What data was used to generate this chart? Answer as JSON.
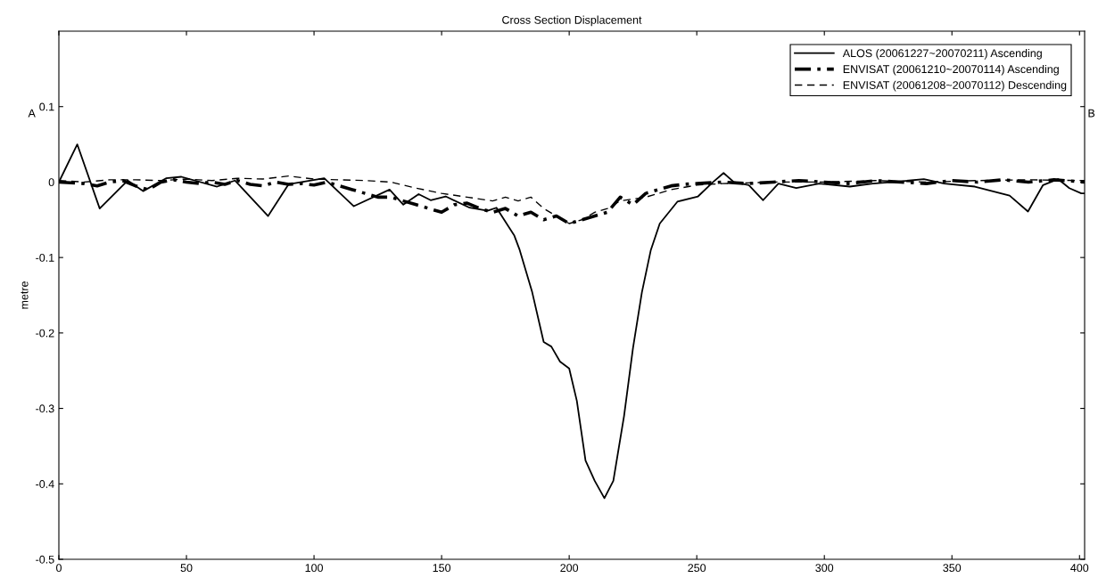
{
  "chart_data": {
    "type": "line",
    "title": "Cross Section Displacement",
    "ylabel": "metre",
    "xlim": [
      0,
      402
    ],
    "ylim": [
      -0.5,
      0.2
    ],
    "xticks": [
      0,
      50,
      100,
      150,
      200,
      250,
      300,
      350,
      400
    ],
    "yticks": [
      -0.5,
      -0.4,
      -0.3,
      -0.2,
      -0.1,
      0,
      0.1
    ],
    "grid": false,
    "legend": "top right",
    "annotations": [
      "A",
      "B"
    ],
    "series": [
      {
        "name": "ALOS (20061227~20070211) Ascending",
        "color": "#000000",
        "line_style": "solid",
        "x": [
          0,
          7.2,
          16,
          27,
          33,
          42,
          48,
          62,
          69,
          82,
          90,
          104,
          115.6,
          129.6,
          135,
          141,
          145.7,
          151.6,
          161,
          168,
          171.5,
          178.5,
          180.6,
          185.5,
          190,
          193,
          196.4,
          200,
          203,
          206.4,
          210,
          213.8,
          217.3,
          221.5,
          225,
          228.5,
          232,
          235.5,
          242.4,
          250.5,
          256.4,
          260.5,
          264.5,
          270.4,
          276,
          282,
          289,
          298,
          310,
          319,
          327,
          339,
          347,
          359,
          372.6,
          379.8,
          385.7,
          391.6,
          396,
          400.7,
          402
        ],
        "values": [
          0,
          0.05,
          -0.035,
          0.002,
          -0.012,
          0.005,
          0.007,
          -0.006,
          0.002,
          -0.045,
          -0.003,
          0.005,
          -0.032,
          -0.01,
          -0.03,
          -0.016,
          -0.024,
          -0.019,
          -0.034,
          -0.038,
          -0.034,
          -0.071,
          -0.09,
          -0.146,
          -0.212,
          -0.218,
          -0.238,
          -0.247,
          -0.29,
          -0.369,
          -0.396,
          -0.419,
          -0.396,
          -0.31,
          -0.22,
          -0.146,
          -0.09,
          -0.055,
          -0.026,
          -0.019,
          0,
          0.012,
          0,
          -0.004,
          -0.024,
          -0.002,
          -0.008,
          -0.002,
          -0.006,
          -0.002,
          0,
          0.004,
          -0.002,
          -0.006,
          -0.018,
          -0.039,
          -0.004,
          0.004,
          -0.008,
          -0.015,
          -0.015
        ]
      },
      {
        "name": "ENVISAT (20061210~20070114) Ascending",
        "color": "#000000",
        "line_style": "dashdot",
        "x": [
          0,
          10,
          15,
          20,
          25,
          30,
          35,
          40,
          45,
          50,
          55,
          60,
          65,
          70,
          75,
          80,
          85,
          90,
          95,
          100,
          105,
          110,
          115,
          120,
          125,
          130,
          135,
          140,
          145,
          150,
          155,
          160,
          165,
          170,
          175,
          180,
          185,
          190,
          195,
          200,
          205,
          210,
          215,
          220,
          225,
          230,
          235,
          240,
          245,
          250,
          260,
          270,
          280,
          290,
          300,
          310,
          320,
          330,
          340,
          350,
          360,
          370,
          380,
          390,
          402
        ],
        "values": [
          0,
          -0.002,
          -0.005,
          0,
          0.002,
          -0.005,
          -0.01,
          0,
          0.003,
          0,
          -0.002,
          0,
          -0.003,
          0.002,
          -0.003,
          -0.005,
          0,
          -0.003,
          -0.002,
          -0.004,
          0,
          -0.005,
          -0.01,
          -0.015,
          -0.02,
          -0.02,
          -0.025,
          -0.03,
          -0.035,
          -0.04,
          -0.03,
          -0.028,
          -0.035,
          -0.04,
          -0.035,
          -0.045,
          -0.04,
          -0.05,
          -0.045,
          -0.055,
          -0.05,
          -0.045,
          -0.04,
          -0.02,
          -0.03,
          -0.015,
          -0.01,
          -0.005,
          -0.003,
          -0.002,
          0,
          -0.002,
          0,
          0.002,
          0,
          -0.002,
          0.002,
          0,
          -0.002,
          0.002,
          0,
          0.003,
          0,
          0.003,
          0
        ]
      },
      {
        "name": "ENVISAT (20061208~20070112) Descending",
        "color": "#000000",
        "line_style": "dashed",
        "x": [
          0,
          10,
          20,
          30,
          40,
          50,
          60,
          70,
          80,
          90,
          100,
          110,
          120,
          130,
          140,
          150,
          160,
          170,
          175,
          180,
          185,
          190,
          195,
          200,
          205,
          210,
          215,
          220,
          230,
          240,
          250,
          260,
          280,
          300,
          320,
          340,
          360,
          380,
          402
        ],
        "values": [
          0.002,
          0,
          0.003,
          0.003,
          0.002,
          0.004,
          0.002,
          0.005,
          0.004,
          0.008,
          0.004,
          0.003,
          0.002,
          0,
          -0.008,
          -0.015,
          -0.02,
          -0.025,
          -0.02,
          -0.025,
          -0.02,
          -0.035,
          -0.045,
          -0.055,
          -0.05,
          -0.04,
          -0.035,
          -0.025,
          -0.02,
          -0.01,
          -0.004,
          -0.002,
          0,
          0,
          0.002,
          0,
          0.002,
          0.003,
          0.002
        ]
      }
    ]
  }
}
